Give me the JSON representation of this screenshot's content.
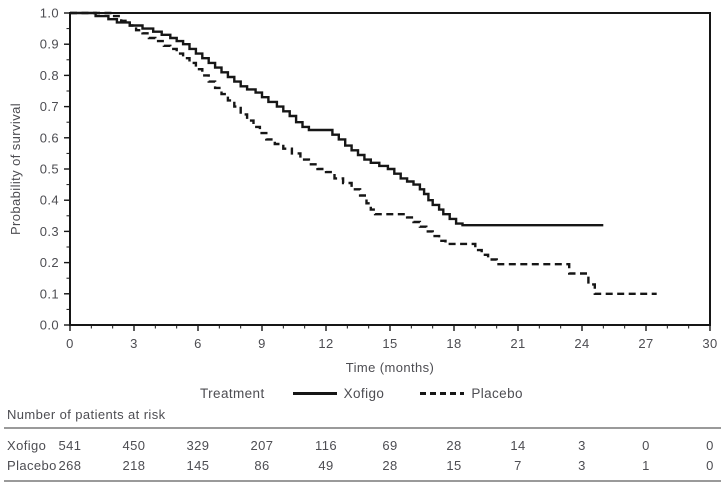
{
  "colors": {
    "curve": "#161616",
    "frame": "#161616",
    "text": "#4d4d52",
    "rule": "#9a9a9a"
  },
  "chart_data": {
    "type": "line",
    "subtype": "kaplan-meier-step",
    "title": "",
    "xlabel": "Time (months)",
    "ylabel": "Probability of survival",
    "grid": false,
    "x_axis": {
      "label": "Time (months)",
      "range": [
        0,
        30
      ],
      "major_ticks": [
        0,
        3,
        6,
        9,
        12,
        15,
        18,
        21,
        24,
        27,
        30
      ],
      "minor_step": 1
    },
    "y_axis": {
      "label": "Probability of survival",
      "range": [
        0,
        1
      ],
      "major_ticks": [
        0.0,
        0.1,
        0.2,
        0.3,
        0.4,
        0.5,
        0.6,
        0.7,
        0.8,
        0.9,
        1.0
      ],
      "minor_step": 0.05
    },
    "legend": {
      "title": "Treatment",
      "position": "bottom",
      "entries": [
        {
          "label": "Xofigo",
          "style": "solid"
        },
        {
          "label": "Placebo",
          "style": "dashed"
        }
      ]
    },
    "series": [
      {
        "name": "Xofigo",
        "style": "solid",
        "points": [
          [
            0,
            1.0
          ],
          [
            1.2,
            0.99
          ],
          [
            1.8,
            0.98
          ],
          [
            2.2,
            0.97
          ],
          [
            2.8,
            0.96
          ],
          [
            3.4,
            0.95
          ],
          [
            3.9,
            0.94
          ],
          [
            4.3,
            0.93
          ],
          [
            4.7,
            0.92
          ],
          [
            5.0,
            0.91
          ],
          [
            5.3,
            0.9
          ],
          [
            5.6,
            0.885
          ],
          [
            5.9,
            0.87
          ],
          [
            6.2,
            0.855
          ],
          [
            6.5,
            0.84
          ],
          [
            6.8,
            0.825
          ],
          [
            7.1,
            0.81
          ],
          [
            7.4,
            0.795
          ],
          [
            7.7,
            0.78
          ],
          [
            8.0,
            0.765
          ],
          [
            8.3,
            0.755
          ],
          [
            8.7,
            0.745
          ],
          [
            9.0,
            0.73
          ],
          [
            9.3,
            0.715
          ],
          [
            9.7,
            0.7
          ],
          [
            10.0,
            0.685
          ],
          [
            10.3,
            0.67
          ],
          [
            10.6,
            0.65
          ],
          [
            10.9,
            0.635
          ],
          [
            11.2,
            0.625
          ],
          [
            12.3,
            0.61
          ],
          [
            12.6,
            0.595
          ],
          [
            12.9,
            0.575
          ],
          [
            13.2,
            0.56
          ],
          [
            13.5,
            0.545
          ],
          [
            13.8,
            0.53
          ],
          [
            14.1,
            0.52
          ],
          [
            14.5,
            0.51
          ],
          [
            14.9,
            0.5
          ],
          [
            15.2,
            0.485
          ],
          [
            15.5,
            0.47
          ],
          [
            15.8,
            0.46
          ],
          [
            16.1,
            0.45
          ],
          [
            16.4,
            0.435
          ],
          [
            16.6,
            0.42
          ],
          [
            16.8,
            0.4
          ],
          [
            17.0,
            0.385
          ],
          [
            17.3,
            0.37
          ],
          [
            17.5,
            0.355
          ],
          [
            17.8,
            0.34
          ],
          [
            18.1,
            0.325
          ],
          [
            18.4,
            0.32
          ],
          [
            25.0,
            0.32
          ]
        ]
      },
      {
        "name": "Placebo",
        "style": "dashed",
        "points": [
          [
            0,
            1.0
          ],
          [
            2.0,
            0.99
          ],
          [
            2.4,
            0.975
          ],
          [
            2.8,
            0.96
          ],
          [
            3.1,
            0.945
          ],
          [
            3.4,
            0.935
          ],
          [
            3.7,
            0.92
          ],
          [
            4.0,
            0.91
          ],
          [
            4.4,
            0.895
          ],
          [
            4.7,
            0.885
          ],
          [
            5.0,
            0.87
          ],
          [
            5.3,
            0.855
          ],
          [
            5.6,
            0.84
          ],
          [
            5.9,
            0.82
          ],
          [
            6.2,
            0.8
          ],
          [
            6.5,
            0.78
          ],
          [
            6.8,
            0.76
          ],
          [
            7.1,
            0.74
          ],
          [
            7.4,
            0.72
          ],
          [
            7.7,
            0.7
          ],
          [
            8.0,
            0.675
          ],
          [
            8.3,
            0.655
          ],
          [
            8.6,
            0.635
          ],
          [
            8.9,
            0.615
          ],
          [
            9.2,
            0.595
          ],
          [
            9.6,
            0.58
          ],
          [
            10.0,
            0.565
          ],
          [
            10.4,
            0.55
          ],
          [
            10.8,
            0.53
          ],
          [
            11.2,
            0.515
          ],
          [
            11.6,
            0.5
          ],
          [
            12.0,
            0.49
          ],
          [
            12.4,
            0.47
          ],
          [
            12.8,
            0.455
          ],
          [
            13.2,
            0.435
          ],
          [
            13.6,
            0.415
          ],
          [
            13.9,
            0.39
          ],
          [
            14.1,
            0.37
          ],
          [
            14.3,
            0.355
          ],
          [
            15.8,
            0.345
          ],
          [
            16.1,
            0.33
          ],
          [
            16.4,
            0.315
          ],
          [
            16.7,
            0.3
          ],
          [
            17.0,
            0.285
          ],
          [
            17.3,
            0.27
          ],
          [
            17.6,
            0.26
          ],
          [
            19.0,
            0.24
          ],
          [
            19.3,
            0.225
          ],
          [
            19.6,
            0.21
          ],
          [
            20.0,
            0.195
          ],
          [
            23.4,
            0.165
          ],
          [
            24.3,
            0.13
          ],
          [
            24.6,
            0.1
          ],
          [
            27.5,
            0.1
          ]
        ]
      }
    ]
  },
  "risk_table": {
    "title": "Number of patients at risk",
    "time_points": [
      0,
      3,
      6,
      9,
      12,
      15,
      18,
      21,
      24,
      27,
      30
    ],
    "rows": [
      {
        "label": "Xofigo",
        "values": [
          "541",
          "450",
          "329",
          "207",
          "116",
          "69",
          "28",
          "14",
          "3",
          "0",
          "0"
        ]
      },
      {
        "label": "Placebo",
        "values": [
          "268",
          "218",
          "145",
          "86",
          "49",
          "28",
          "15",
          "7",
          "3",
          "1",
          "0"
        ]
      }
    ]
  }
}
